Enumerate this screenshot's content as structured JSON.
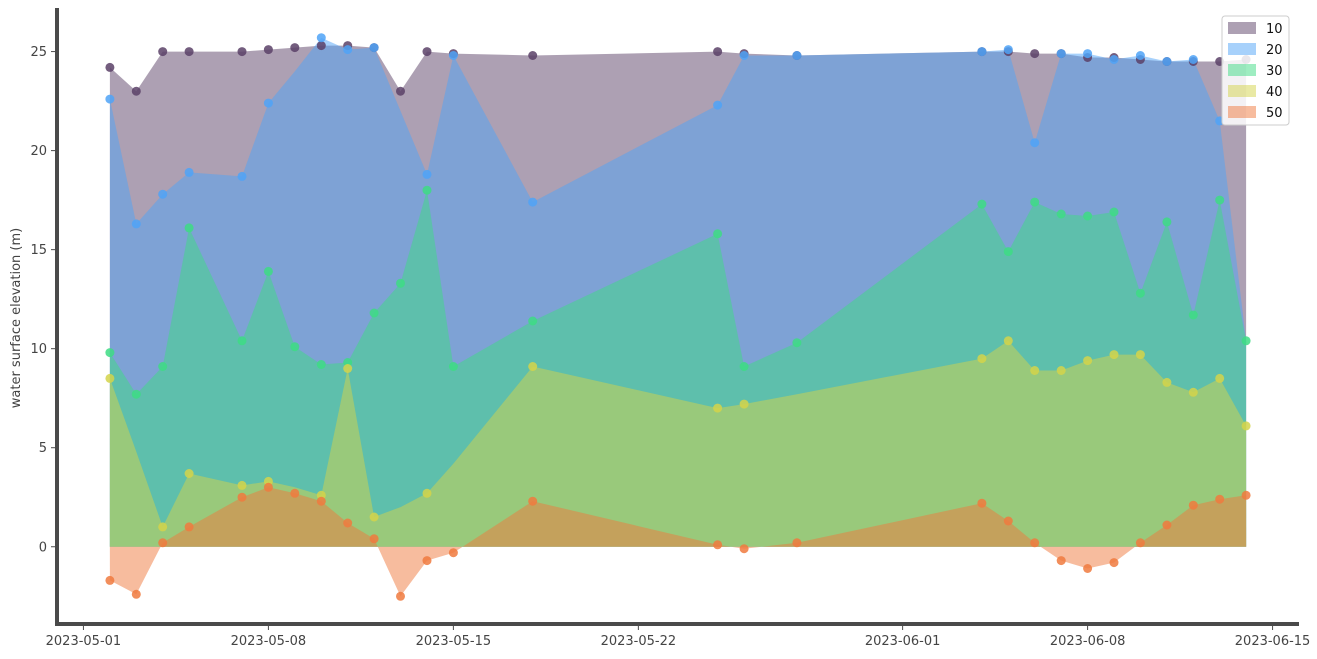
{
  "chart_data": {
    "type": "area",
    "title": "",
    "xlabel": "",
    "ylabel": "water surface elevation (m)",
    "xlim": [
      "2023-04-30",
      "2023-06-16"
    ],
    "ylim": [
      -3.9,
      27.2
    ],
    "x_ticks": [
      "2023-05-01",
      "2023-05-08",
      "2023-05-15",
      "2023-05-22",
      "2023-06-01",
      "2023-06-08",
      "2023-06-15"
    ],
    "y_ticks": [
      0,
      5,
      10,
      15,
      20,
      25
    ],
    "grid": false,
    "legend_position": "top-right",
    "x": [
      "2023-05-02",
      "2023-05-03",
      "2023-05-04",
      "2023-05-05",
      "2023-05-07",
      "2023-05-08",
      "2023-05-09",
      "2023-05-10",
      "2023-05-11",
      "2023-05-12",
      "2023-05-13",
      "2023-05-14",
      "2023-05-15",
      "2023-05-18",
      "2023-05-25",
      "2023-05-26",
      "2023-05-28",
      "2023-06-04",
      "2023-06-05",
      "2023-06-06",
      "2023-06-07",
      "2023-06-08",
      "2023-06-09",
      "2023-06-10",
      "2023-06-11",
      "2023-06-12",
      "2023-06-13",
      "2023-06-14"
    ],
    "series": [
      {
        "name": "10",
        "color": "#5b4167",
        "values": [
          24.2,
          23.0,
          25.0,
          25.0,
          25.0,
          25.1,
          25.2,
          25.3,
          25.3,
          25.2,
          23.0,
          25.0,
          24.9,
          24.8,
          25.0,
          24.9,
          24.8,
          25.0,
          25.0,
          24.9,
          24.9,
          24.7,
          24.7,
          24.6,
          24.5,
          24.5,
          24.5,
          24.6
        ]
      },
      {
        "name": "20",
        "color": "#4fa3f7",
        "values": [
          22.6,
          16.3,
          17.8,
          18.9,
          18.7,
          22.4,
          null,
          25.7,
          25.1,
          25.2,
          null,
          18.8,
          24.8,
          17.4,
          22.3,
          24.8,
          24.8,
          25.0,
          25.1,
          20.4,
          24.9,
          24.9,
          24.6,
          24.8,
          24.5,
          24.6,
          21.5,
          null
        ]
      },
      {
        "name": "30",
        "color": "#3ddc84",
        "values": [
          9.8,
          7.7,
          9.1,
          16.1,
          10.4,
          13.9,
          10.1,
          9.2,
          9.3,
          11.8,
          13.3,
          18.0,
          9.1,
          11.4,
          15.8,
          9.1,
          10.3,
          17.3,
          14.9,
          17.4,
          16.8,
          16.7,
          16.9,
          12.8,
          16.4,
          11.7,
          17.5,
          10.4
        ]
      },
      {
        "name": "40",
        "color": "#d4d44a",
        "values": [
          8.5,
          null,
          1.0,
          3.7,
          3.1,
          3.3,
          null,
          2.6,
          9.0,
          1.5,
          null,
          2.7,
          null,
          9.1,
          7.0,
          7.2,
          null,
          9.5,
          10.4,
          8.9,
          8.9,
          9.4,
          9.7,
          9.7,
          8.3,
          7.8,
          8.5,
          6.1
        ]
      },
      {
        "name": "50",
        "color": "#f07a3e",
        "values": [
          -1.7,
          -2.4,
          0.2,
          1.0,
          2.5,
          3.0,
          2.7,
          2.3,
          1.2,
          0.4,
          -2.5,
          -0.7,
          -0.3,
          2.3,
          0.1,
          -0.1,
          0.2,
          2.2,
          1.3,
          0.2,
          -0.7,
          -1.1,
          -0.8,
          0.2,
          1.1,
          2.1,
          2.4,
          2.6
        ]
      }
    ],
    "area_bounds": {
      "10": [
        24.2,
        23.0,
        25.0,
        25.0,
        25.0,
        25.1,
        25.2,
        25.3,
        25.3,
        25.2,
        23.0,
        25.0,
        24.9,
        24.8,
        25.0,
        24.9,
        24.8,
        25.0,
        25.0,
        24.9,
        24.9,
        24.7,
        24.7,
        24.6,
        24.5,
        24.5,
        24.5,
        24.6
      ],
      "20": [
        22.6,
        16.3,
        17.8,
        18.9,
        18.7,
        22.4,
        24.0,
        25.7,
        25.1,
        25.2,
        22.0,
        18.8,
        24.8,
        17.4,
        22.3,
        24.8,
        24.8,
        25.0,
        25.1,
        20.4,
        24.9,
        24.9,
        24.6,
        24.8,
        24.5,
        24.6,
        21.5,
        10.4
      ],
      "30": [
        9.8,
        7.7,
        9.1,
        16.1,
        10.4,
        13.9,
        10.1,
        9.2,
        9.3,
        11.8,
        13.3,
        18.0,
        9.1,
        11.4,
        15.8,
        9.1,
        10.3,
        17.3,
        14.9,
        17.4,
        16.8,
        16.7,
        16.9,
        12.8,
        16.4,
        11.7,
        17.5,
        10.4
      ],
      "40": [
        8.5,
        4.8,
        1.0,
        3.7,
        3.1,
        3.3,
        3.0,
        2.6,
        9.0,
        1.5,
        2.0,
        2.7,
        4.2,
        9.1,
        7.0,
        7.2,
        7.7,
        9.5,
        10.4,
        8.9,
        8.9,
        9.4,
        9.7,
        9.7,
        8.3,
        7.8,
        8.5,
        6.1
      ],
      "50": [
        -1.7,
        -2.4,
        0.2,
        1.0,
        2.5,
        3.0,
        2.7,
        2.3,
        1.2,
        0.4,
        -2.5,
        -0.7,
        -0.3,
        2.3,
        0.1,
        -0.1,
        0.2,
        2.2,
        1.3,
        0.2,
        -0.7,
        -1.1,
        -0.8,
        0.2,
        1.1,
        2.1,
        2.4,
        2.6
      ]
    }
  }
}
